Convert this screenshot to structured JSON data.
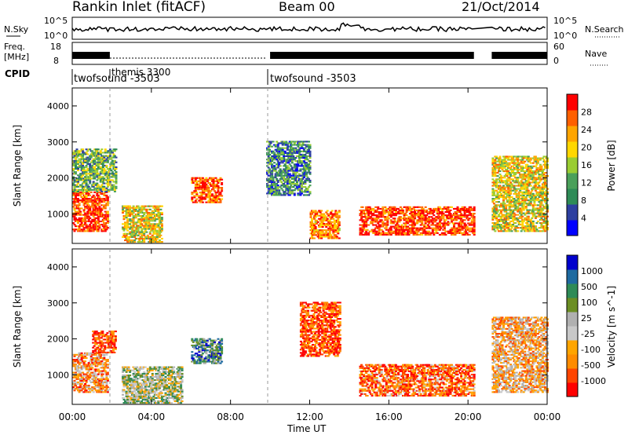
{
  "header": {
    "station": "Rankin Inlet (fitACF)",
    "beam": "Beam 00",
    "date": "21/Oct/2014"
  },
  "noise_panel": {
    "left_label": "N.Sky",
    "right_label": "N.Search",
    "left_ticks": [
      "10^5",
      "10^0"
    ],
    "right_ticks": [
      "10^5",
      "10^0"
    ]
  },
  "freq_panel": {
    "left_label_1": "Freq.",
    "left_label_2": "[MHz]",
    "right_label": "Nave",
    "left_ticks": [
      "18",
      "8"
    ],
    "right_ticks": [
      "60",
      "0"
    ]
  },
  "cpid_panel": {
    "label": "CPID",
    "segments": [
      {
        "name": "twofsound -3503",
        "start_hour": 0.0
      },
      {
        "name": "themis 3300",
        "start_hour": 1.9
      },
      {
        "name": "twofsound -3503",
        "start_hour": 10.0
      }
    ]
  },
  "colors": {
    "power": [
      "#0000ff",
      "#2d3fa0",
      "#2e8b57",
      "#4aa05a",
      "#9acd32",
      "#ffd700",
      "#ffa500",
      "#ff6000",
      "#ff0000"
    ],
    "velocity": [
      "#ff0000",
      "#ff4500",
      "#ff8c00",
      "#ffa500",
      "#c8c8c8",
      "#b0b0b0",
      "#6b8e23",
      "#2e8b57",
      "#1e6aa0",
      "#0000cd"
    ]
  },
  "chart_data": [
    {
      "type": "heatmap",
      "name": "power",
      "ylabel": "Slant Range [km]",
      "colorbar_label": "Power [dB]",
      "colorbar_ticks": [
        "28",
        "24",
        "20",
        "16",
        "12",
        "8",
        "4"
      ],
      "y_ticks": [
        "4000",
        "3000",
        "2000",
        "1000"
      ],
      "ylim": [
        180,
        4500
      ],
      "xlim_hours": [
        0,
        24
      ],
      "x_ticks": [
        "00:00",
        "04:00",
        "08:00",
        "12:00",
        "16:00",
        "20:00",
        "00:00"
      ],
      "xlabel": "Time UT",
      "data_gaps_hours": [
        [
          20.3,
          21.2
        ]
      ],
      "echo_regions": [
        {
          "t0": 0.0,
          "t1": 1.8,
          "r0": 500,
          "r1": 1600,
          "level": 0.9
        },
        {
          "t0": 0.0,
          "t1": 2.2,
          "r0": 1600,
          "r1": 2800,
          "level": 0.4
        },
        {
          "t0": 2.5,
          "t1": 4.5,
          "r0": 200,
          "r1": 1200,
          "level": 0.6
        },
        {
          "t0": 6.0,
          "t1": 7.5,
          "r0": 1300,
          "r1": 2000,
          "level": 0.85
        },
        {
          "t0": 9.8,
          "t1": 12.0,
          "r0": 1500,
          "r1": 3000,
          "level": 0.3
        },
        {
          "t0": 12.0,
          "t1": 13.5,
          "r0": 300,
          "r1": 1100,
          "level": 0.8
        },
        {
          "t0": 14.5,
          "t1": 20.3,
          "r0": 400,
          "r1": 1200,
          "level": 0.9
        },
        {
          "t0": 21.2,
          "t1": 24.0,
          "r0": 500,
          "r1": 2600,
          "level": 0.6
        }
      ]
    },
    {
      "type": "heatmap",
      "name": "velocity",
      "ylabel": "Slant Range [km]",
      "colorbar_label": "Velocity [m s^-1]",
      "colorbar_ticks": [
        "1000",
        "500",
        "100",
        "25",
        "-25",
        "-100",
        "-500",
        "-1000"
      ],
      "y_ticks": [
        "4000",
        "3000",
        "2000",
        "1000"
      ],
      "ylim": [
        180,
        4500
      ],
      "xlim_hours": [
        0,
        24
      ],
      "x_ticks": [
        "00:00",
        "04:00",
        "08:00",
        "12:00",
        "16:00",
        "20:00",
        "00:00"
      ],
      "xlabel": "Time UT",
      "data_gaps_hours": [
        [
          20.3,
          21.2
        ]
      ],
      "echo_regions": [
        {
          "t0": 0.0,
          "t1": 1.8,
          "r0": 500,
          "r1": 1600,
          "level": 0.3
        },
        {
          "t0": 1.0,
          "t1": 2.2,
          "r0": 1600,
          "r1": 2200,
          "level": 0.15
        },
        {
          "t0": 2.5,
          "t1": 5.5,
          "r0": 200,
          "r1": 1200,
          "level": 0.55
        },
        {
          "t0": 6.0,
          "t1": 7.5,
          "r0": 1300,
          "r1": 2000,
          "level": 0.75
        },
        {
          "t0": 11.5,
          "t1": 13.5,
          "r0": 1500,
          "r1": 3000,
          "level": 0.15
        },
        {
          "t0": 14.5,
          "t1": 20.3,
          "r0": 400,
          "r1": 1300,
          "level": 0.2
        },
        {
          "t0": 21.2,
          "t1": 24.0,
          "r0": 500,
          "r1": 2600,
          "level": 0.35
        }
      ]
    }
  ]
}
